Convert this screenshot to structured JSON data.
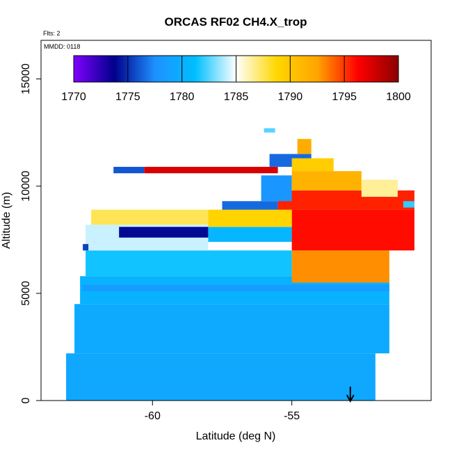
{
  "chart_data": {
    "type": "heatmap",
    "title": "ORCAS RF02 CH4.X_trop",
    "annotations": {
      "flights": "Flts: 2",
      "date": "MMDD: 0118"
    },
    "xlabel": "Latitude (deg N)",
    "ylabel": "Altitude (m)",
    "xlim": [
      -64.0,
      -50.0
    ],
    "ylim": [
      0,
      16800
    ],
    "x_ticks": [
      -60,
      -55
    ],
    "x_tick_labels": [
      "-60",
      "-55"
    ],
    "y_ticks": [
      0,
      5000,
      10000,
      15000
    ],
    "y_tick_labels": [
      "0",
      "5000",
      "10000",
      "15000"
    ],
    "grid": false,
    "colorbar": {
      "range": [
        1770,
        1800
      ],
      "ticks": [
        1770,
        1775,
        1780,
        1785,
        1790,
        1795,
        1800
      ],
      "tick_labels": [
        "1770",
        "1775",
        "1780",
        "1785",
        "1790",
        "1795",
        "1800"
      ],
      "colors": [
        "#8000ff",
        "#00008b",
        "#1e90ff",
        "#00bfff",
        "#ffffff",
        "#ffd700",
        "#ffa500",
        "#ff0000",
        "#8b0000"
      ],
      "placement": "top-inside"
    },
    "arrow_marker": {
      "lat": -52.9,
      "direction": "down"
    },
    "cells": [
      {
        "lat0": -63.1,
        "lat1": -52.0,
        "alt0": 0,
        "alt1": 2200,
        "value": 1779.3
      },
      {
        "lat0": -62.8,
        "lat1": -51.5,
        "alt0": 2200,
        "alt1": 4500,
        "value": 1779.6
      },
      {
        "lat0": -62.6,
        "lat1": -51.5,
        "alt0": 4500,
        "alt1": 5800,
        "value": 1780.2
      },
      {
        "lat0": -62.4,
        "lat1": -55.0,
        "alt0": 5800,
        "alt1": 7000,
        "value": 1781.5
      },
      {
        "lat0": -62.4,
        "lat1": -58.0,
        "alt0": 7000,
        "alt1": 8200,
        "value": 1784.2
      },
      {
        "lat0": -62.2,
        "lat1": -58.0,
        "alt0": 8200,
        "alt1": 8900,
        "value": 1787.5
      },
      {
        "lat0": -61.2,
        "lat1": -58.0,
        "alt0": 7600,
        "alt1": 8100,
        "value": 1774.0
      },
      {
        "lat0": -58.0,
        "lat1": -55.0,
        "alt0": 7400,
        "alt1": 8100,
        "value": 1780.5
      },
      {
        "lat0": -55.0,
        "lat1": -51.5,
        "alt0": 5500,
        "alt1": 7000,
        "value": 1793.0
      },
      {
        "lat0": -55.0,
        "lat1": -50.6,
        "alt0": 7000,
        "alt1": 8900,
        "value": 1796.0
      },
      {
        "lat0": -58.0,
        "lat1": -55.0,
        "alt0": 8100,
        "alt1": 8900,
        "value": 1789.0
      },
      {
        "lat0": -57.5,
        "lat1": -55.5,
        "alt0": 8900,
        "alt1": 9300,
        "value": 1776.5
      },
      {
        "lat0": -55.5,
        "lat1": -50.6,
        "alt0": 8900,
        "alt1": 9800,
        "value": 1795.5
      },
      {
        "lat0": -56.1,
        "lat1": -55.0,
        "alt0": 9300,
        "alt1": 10500,
        "value": 1778.0
      },
      {
        "lat0": -55.0,
        "lat1": -52.5,
        "alt0": 9800,
        "alt1": 10700,
        "value": 1791.5
      },
      {
        "lat0": -52.5,
        "lat1": -51.2,
        "alt0": 9500,
        "alt1": 10300,
        "value": 1786.5
      },
      {
        "lat0": -60.3,
        "lat1": -55.5,
        "alt0": 10600,
        "alt1": 10900,
        "value": 1797.5
      },
      {
        "lat0": -61.4,
        "lat1": -60.3,
        "alt0": 10600,
        "alt1": 10900,
        "value": 1776.0
      },
      {
        "lat0": -55.8,
        "lat1": -54.3,
        "alt0": 10900,
        "alt1": 11500,
        "value": 1776.5
      },
      {
        "lat0": -55.0,
        "lat1": -53.5,
        "alt0": 10700,
        "alt1": 11300,
        "value": 1789.5
      },
      {
        "lat0": -54.8,
        "lat1": -54.3,
        "alt0": 11500,
        "alt1": 12200,
        "value": 1792.0
      },
      {
        "lat0": -56.0,
        "lat1": -55.6,
        "alt0": 12500,
        "alt1": 12700,
        "value": 1782.5
      },
      {
        "lat0": -51.0,
        "lat1": -50.6,
        "alt0": 9000,
        "alt1": 9300,
        "value": 1782.0
      },
      {
        "lat0": -62.5,
        "lat1": -62.3,
        "alt0": 7000,
        "alt1": 7300,
        "value": 1775.5
      },
      {
        "lat0": -62.5,
        "lat1": -51.5,
        "alt0": 5100,
        "alt1": 5400,
        "value": 1778.5
      }
    ]
  }
}
